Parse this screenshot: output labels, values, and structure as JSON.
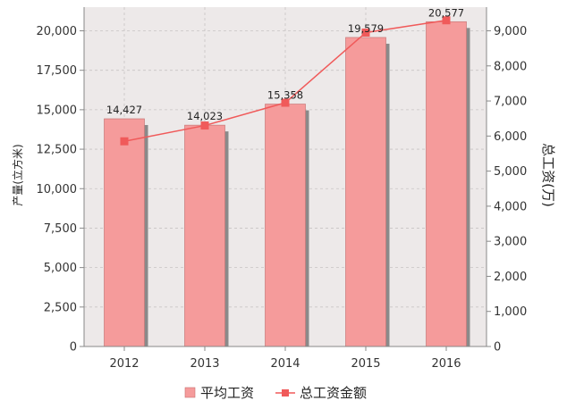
{
  "chart_data": {
    "type": "bar",
    "categories": [
      "2012",
      "2013",
      "2014",
      "2015",
      "2016"
    ],
    "series": [
      {
        "name": "平均工资",
        "type": "bar",
        "axis": "left",
        "values": [
          14427,
          14023,
          15358,
          19579,
          20577
        ],
        "data_labels": [
          "14,427",
          "14,023",
          "15,358",
          "19,579",
          "20,577"
        ],
        "color": "#f59b9b"
      },
      {
        "name": "总工资金额",
        "type": "line",
        "axis": "right",
        "values": [
          5850,
          6300,
          6950,
          8950,
          9300
        ],
        "color": "#f05a5a"
      }
    ],
    "y_left": {
      "label": "产量(立方米)",
      "ylim": [
        0,
        21500
      ],
      "ticks": [
        0,
        2500,
        5000,
        7500,
        10000,
        12500,
        15000,
        17500,
        20000
      ],
      "tick_labels": [
        "0",
        "2,500",
        "5,000",
        "7,500",
        "10,000",
        "12,500",
        "15,000",
        "17,500",
        "20,000"
      ]
    },
    "y_right": {
      "label": "总工资(万)",
      "ylim": [
        0,
        9675
      ],
      "ticks": [
        0,
        1000,
        2000,
        3000,
        4000,
        5000,
        6000,
        7000,
        8000,
        9000
      ],
      "tick_labels": [
        "0",
        "1,000",
        "2,000",
        "3,000",
        "4,000",
        "5,000",
        "6,000",
        "7,000",
        "8,000",
        "9,000"
      ]
    },
    "grid": true,
    "legend_position": "bottom-center",
    "plot_background": "#ede9e9",
    "grid_color": "#c8c4c4"
  }
}
